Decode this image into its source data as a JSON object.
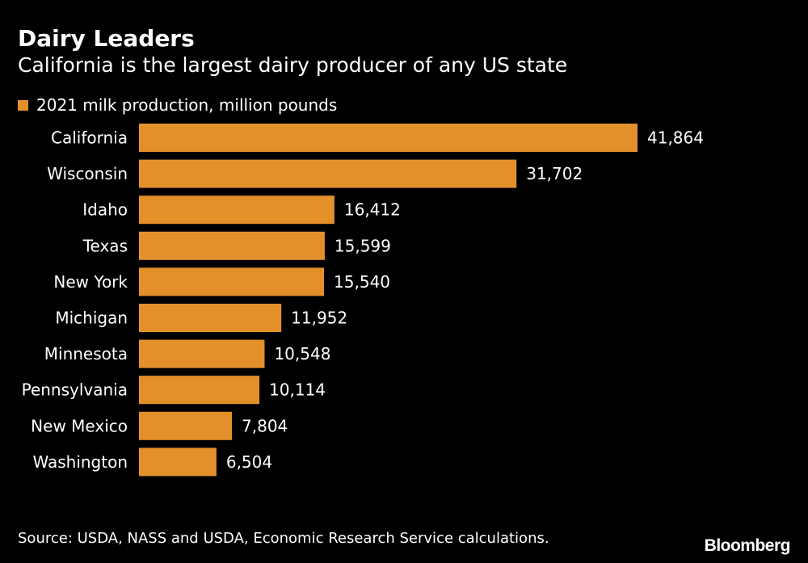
{
  "colors": {
    "bar": "#E3902B",
    "background": "#000000",
    "text": "#ffffff"
  },
  "header": {
    "title": "Dairy Leaders",
    "subtitle": "California is the largest dairy producer of any US state"
  },
  "legend": {
    "label": "2021 milk production, million pounds"
  },
  "chart_data": {
    "type": "bar",
    "orientation": "horizontal",
    "title": "Dairy Leaders",
    "subtitle": "California is the largest dairy producer of any US state",
    "series": [
      {
        "name": "2021 milk production, million pounds",
        "values": [
          41864,
          31702,
          16412,
          15599,
          15540,
          11952,
          10548,
          10114,
          7804,
          6504
        ]
      }
    ],
    "categories": [
      "California",
      "Wisconsin",
      "Idaho",
      "Texas",
      "New York",
      "Michigan",
      "Minnesota",
      "Pennsylvania",
      "New Mexico",
      "Washington"
    ],
    "value_labels": [
      "41,864",
      "31,702",
      "16,412",
      "15,599",
      "15,540",
      "11,952",
      "10,548",
      "10,114",
      "7,804",
      "6,504"
    ],
    "xlim": [
      0,
      41864
    ],
    "xlabel": "",
    "ylabel": "",
    "grid": false,
    "legend_position": "top-left"
  },
  "footer": {
    "source": "Source: USDA, NASS and USDA, Economic Research Service calculations.",
    "brand": "Bloomberg"
  }
}
